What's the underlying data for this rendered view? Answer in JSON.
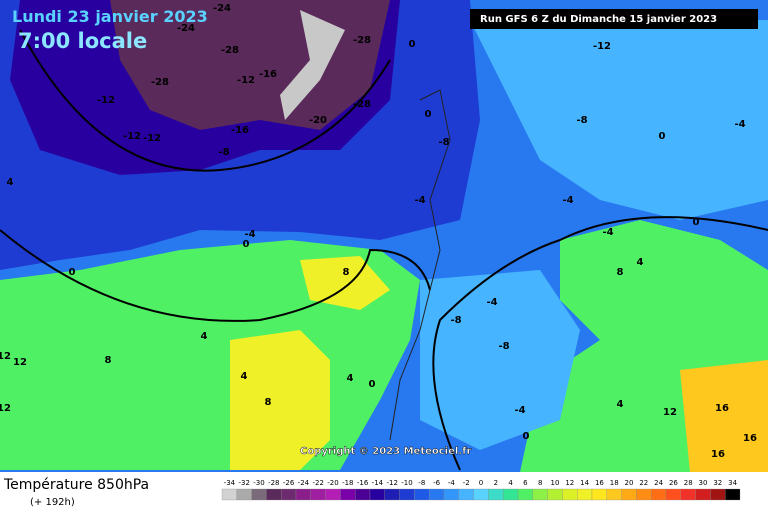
{
  "header": {
    "date": "Lundi 23 janvier 2023",
    "time": "7:00 locale",
    "run": "Run GFS 6 Z du Dimanche 15 janvier 2023"
  },
  "copyright": "Copyright © 2023 Meteociel.fr",
  "footer": {
    "title": "Température 850hPa",
    "lead": "(+ 192h)"
  },
  "legend": {
    "ticks": [
      -34,
      -32,
      -30,
      -28,
      -26,
      -24,
      -22,
      -20,
      -18,
      -16,
      -14,
      -12,
      -10,
      -8,
      -6,
      -4,
      -2,
      0,
      2,
      4,
      6,
      8,
      10,
      12,
      14,
      16,
      18,
      20,
      22,
      24,
      26,
      28,
      30,
      32,
      34
    ],
    "colors": [
      "#d2d2d2",
      "#aaaaaa",
      "#7a6a7a",
      "#5a2a5a",
      "#6e2a6e",
      "#8a1e8a",
      "#a01ea0",
      "#b41eb4",
      "#7a00aa",
      "#4b0096",
      "#2800a0",
      "#1e1eb4",
      "#1e3cd2",
      "#1e5ae6",
      "#2878f0",
      "#3296fa",
      "#46b4ff",
      "#5ad2ff",
      "#3cdcc8",
      "#32e696",
      "#50f064",
      "#8cf046",
      "#b4f032",
      "#dcf028",
      "#f0f028",
      "#ffe61e",
      "#ffc81e",
      "#ffaa14",
      "#ff8c14",
      "#ff6e14",
      "#ff501e",
      "#f03228",
      "#d21e1e",
      "#a01414",
      "#000000"
    ]
  },
  "map_labels": [
    -24,
    -24,
    -28,
    -28,
    -12,
    -12,
    -12,
    -8,
    -16,
    -20,
    -12,
    -16,
    -28,
    -28,
    0,
    0,
    -8,
    -12,
    -8,
    0,
    -4,
    -4,
    -4,
    0,
    4,
    8,
    8,
    4,
    8,
    12,
    12,
    12,
    4,
    8,
    4,
    0,
    -8,
    -4,
    -8,
    -4,
    0,
    4,
    12,
    16,
    16,
    16,
    -4,
    0,
    -4,
    0,
    4
  ]
}
